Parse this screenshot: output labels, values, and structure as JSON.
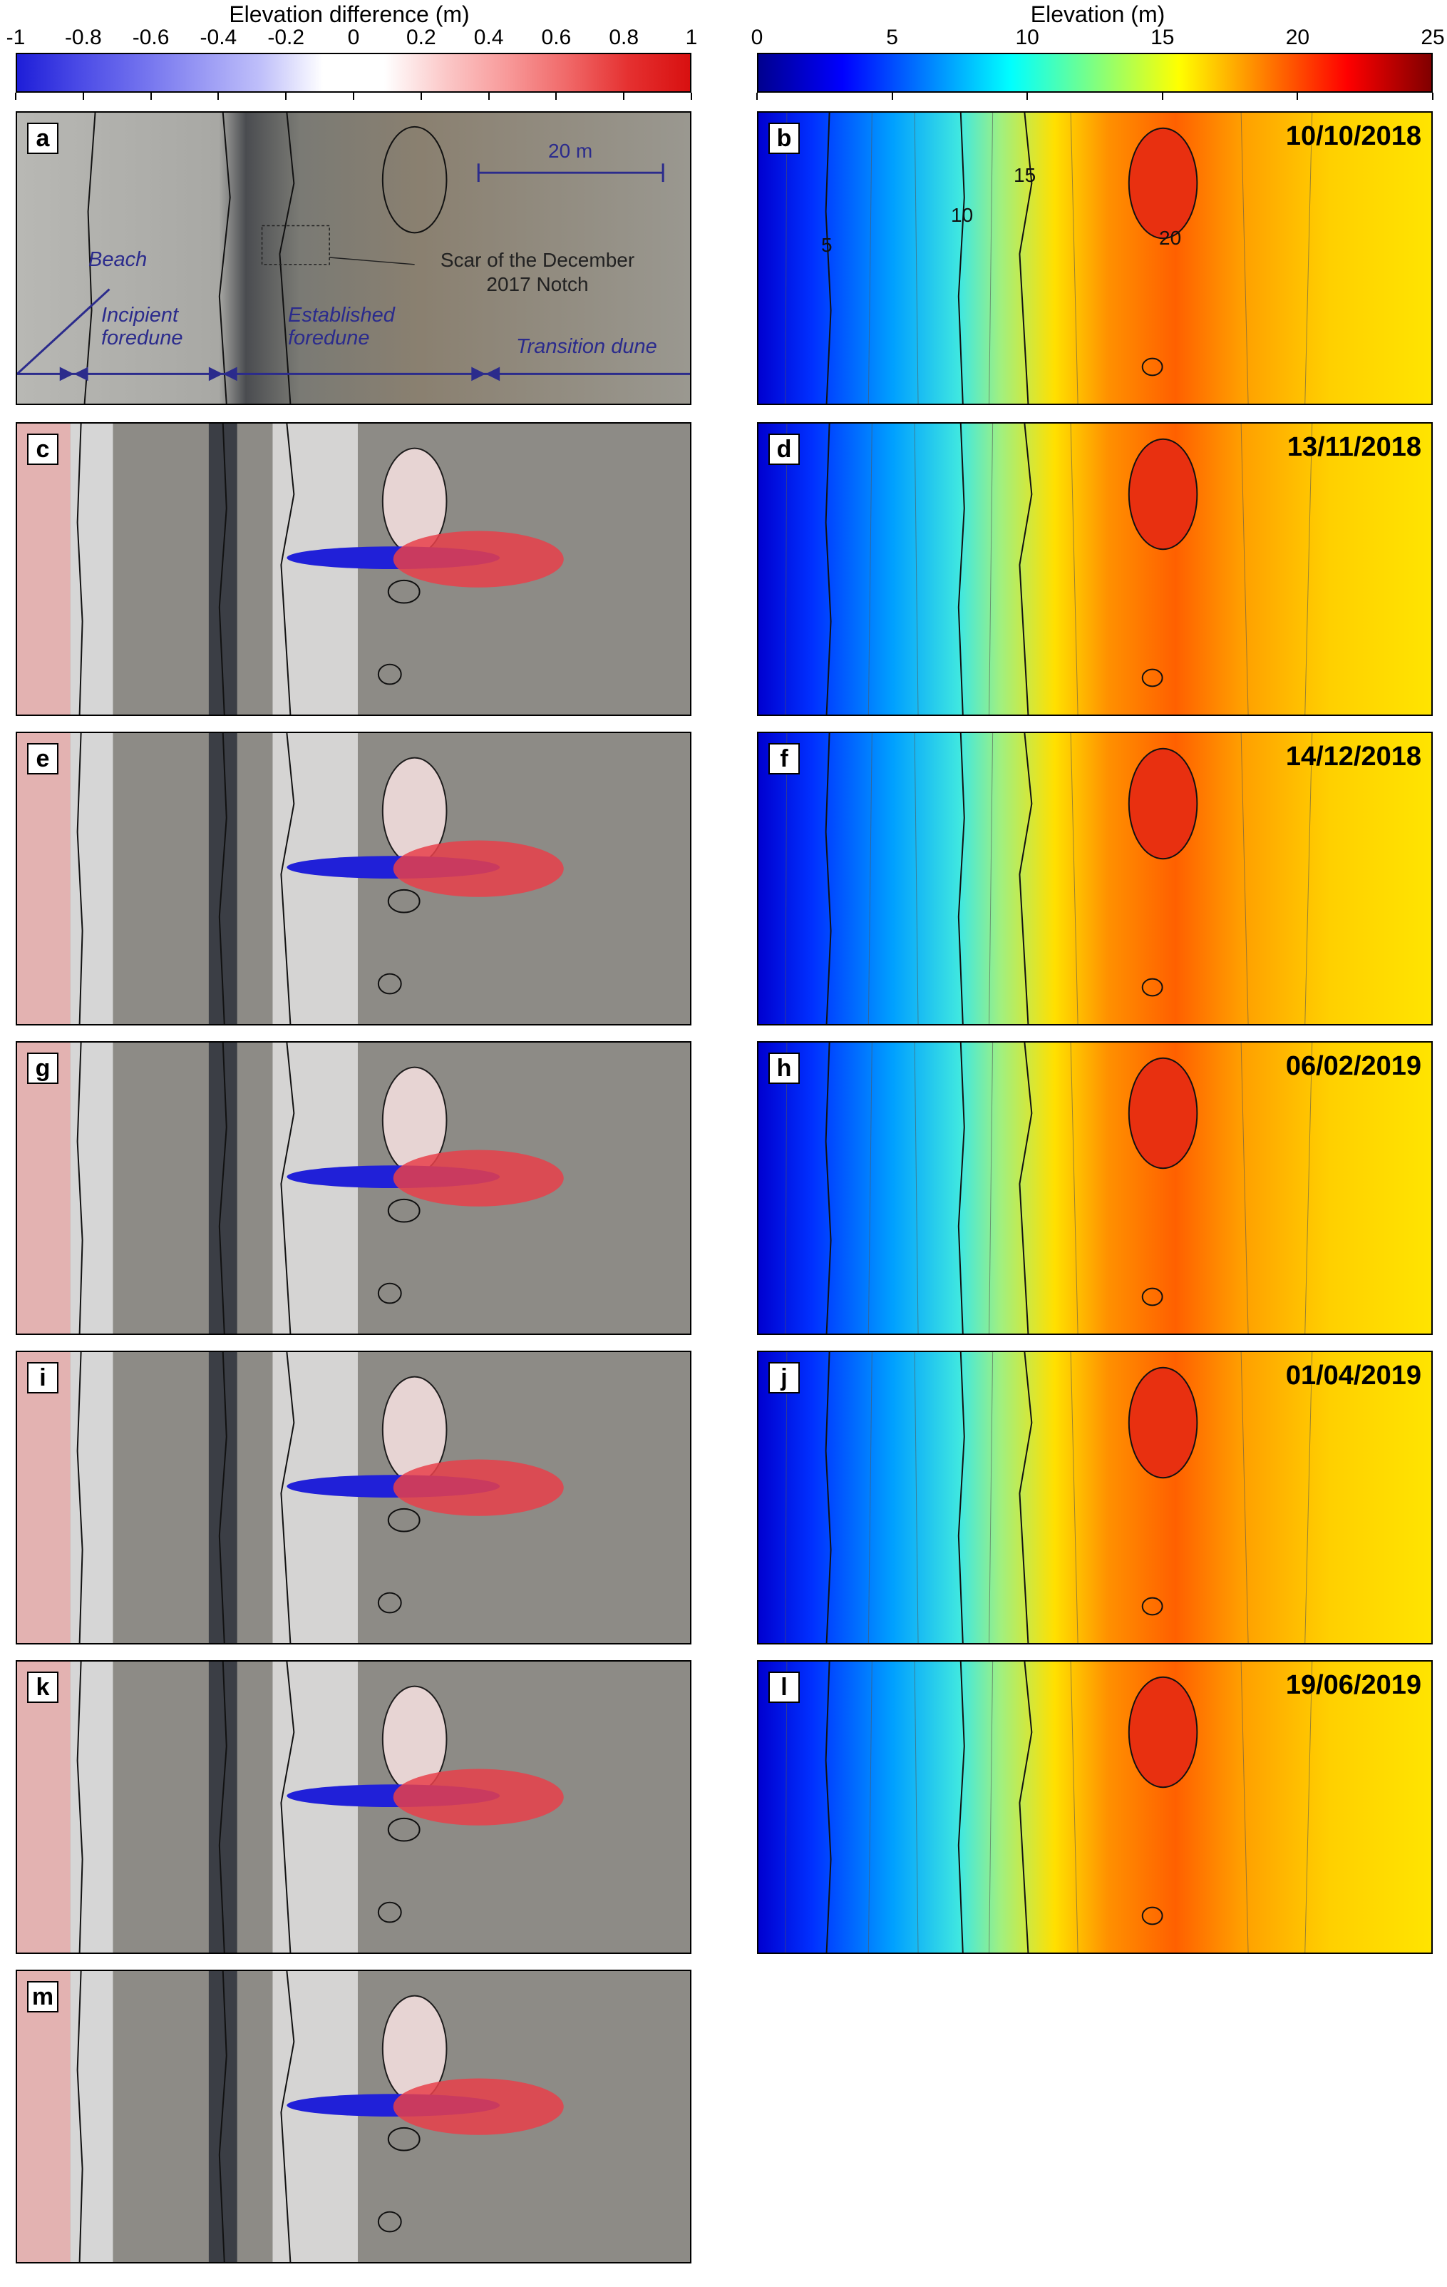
{
  "colorbars": {
    "difference": {
      "title": "Elevation difference (m)",
      "ticks": [
        "-1",
        "-0.8",
        "-0.6",
        "-0.4",
        "-0.2",
        "0",
        "0.2",
        "0.4",
        "0.6",
        "0.8",
        "1"
      ],
      "colors": [
        "#1e1ed8",
        "#4a4ae6",
        "#7070ee",
        "#9898f4",
        "#c0c0fa",
        "#ffffff",
        "#ffffff",
        "#fbc8c8",
        "#f89a9a",
        "#f06868",
        "#e53030",
        "#d81010"
      ]
    },
    "elevation": {
      "title": "Elevation (m)",
      "ticks": [
        "0",
        "5",
        "10",
        "15",
        "20",
        "25"
      ],
      "colors": [
        "#00008f",
        "#0000ff",
        "#0080ff",
        "#00ffff",
        "#80ff80",
        "#ffff00",
        "#ff8000",
        "#ff0000",
        "#800000"
      ]
    }
  },
  "panels": {
    "a": {
      "label": "a"
    },
    "b": {
      "label": "b",
      "date": "10/10/2018"
    },
    "c": {
      "label": "c"
    },
    "d": {
      "label": "d",
      "date": "13/11/2018"
    },
    "e": {
      "label": "e"
    },
    "f": {
      "label": "f",
      "date": "14/12/2018"
    },
    "g": {
      "label": "g"
    },
    "h": {
      "label": "h",
      "date": "06/02/2019"
    },
    "i": {
      "label": "i"
    },
    "j": {
      "label": "j",
      "date": "01/04/2019"
    },
    "k": {
      "label": "k"
    },
    "l": {
      "label": "l",
      "date": "19/06/2019"
    },
    "m": {
      "label": "m"
    }
  },
  "annotations": {
    "beach": "Beach",
    "incipient": "Incipient foredune",
    "established": "Established foredune",
    "transition": "Transition dune",
    "scar": "Scar of the December 2017 Notch",
    "scale": "20 m",
    "contours": [
      "5",
      "10",
      "15",
      "20"
    ]
  }
}
